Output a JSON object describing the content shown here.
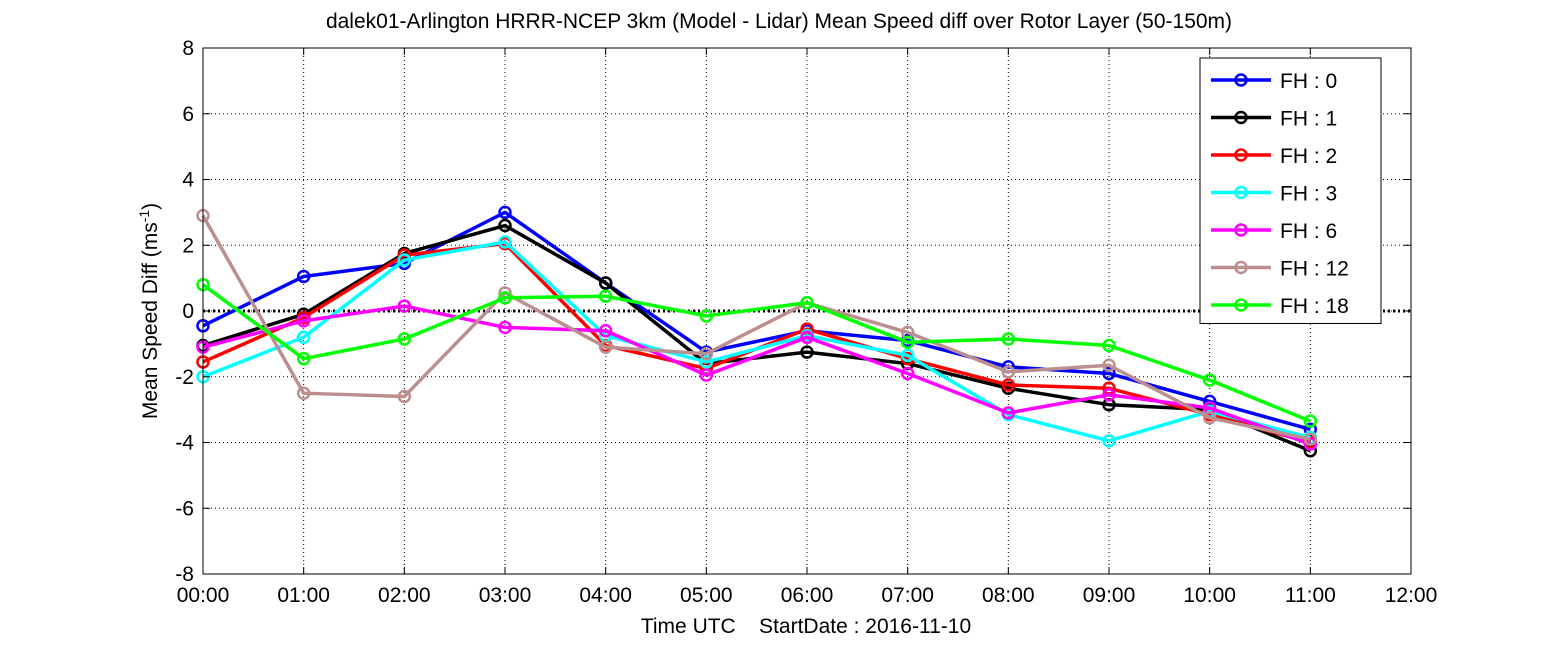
{
  "chart_data": {
    "type": "line",
    "title": "dalek01-Arlington HRRR-NCEP 3km (Model - Lidar) Mean Speed diff over Rotor Layer (50-150m)",
    "xlabel": "Time UTC    StartDate : 2016-11-10",
    "ylabel_main": "Mean Speed Diff (ms",
    "ylabel_sup": "-1",
    "ylabel_close": ")",
    "xlim": [
      0,
      12
    ],
    "ylim": [
      -8,
      8
    ],
    "x_tick_labels": [
      "00:00",
      "01:00",
      "02:00",
      "03:00",
      "04:00",
      "05:00",
      "06:00",
      "07:00",
      "08:00",
      "09:00",
      "10:00",
      "11:00",
      "12:00"
    ],
    "y_tick_labels": [
      "-8",
      "-6",
      "-4",
      "-2",
      "0",
      "2",
      "4",
      "6",
      "8"
    ],
    "grid": true,
    "legend_position": "top-right",
    "x": [
      0,
      1,
      2,
      3,
      4,
      5,
      6,
      7,
      8,
      9,
      10,
      11
    ],
    "series": [
      {
        "name": "FH : 0",
        "color": "#0000ff",
        "values": [
          -0.45,
          1.05,
          1.45,
          3.0,
          0.85,
          -1.25,
          -0.6,
          -0.9,
          -1.7,
          -1.9,
          -2.75,
          -3.6
        ]
      },
      {
        "name": "FH : 1",
        "color": "#000000",
        "values": [
          -1.05,
          -0.1,
          1.75,
          2.6,
          0.85,
          -1.6,
          -1.25,
          -1.6,
          -2.35,
          -2.85,
          -3.0,
          -4.25
        ]
      },
      {
        "name": "FH : 2",
        "color": "#ff0000",
        "values": [
          -1.55,
          -0.2,
          1.7,
          2.05,
          -1.05,
          -1.75,
          -0.55,
          -1.45,
          -2.25,
          -2.35,
          -3.15,
          -4.0
        ]
      },
      {
        "name": "FH : 3",
        "color": "#00ffff",
        "values": [
          -2.0,
          -0.8,
          1.55,
          2.1,
          -0.75,
          -1.55,
          -0.75,
          -1.35,
          -3.15,
          -3.95,
          -3.05,
          -3.85
        ]
      },
      {
        "name": "FH : 6",
        "color": "#ff00ff",
        "values": [
          -1.1,
          -0.3,
          0.15,
          -0.5,
          -0.6,
          -1.95,
          -0.8,
          -1.9,
          -3.1,
          -2.55,
          -2.95,
          -4.05
        ]
      },
      {
        "name": "FH : 12",
        "color": "#bc8f8f",
        "values": [
          2.9,
          -2.5,
          -2.6,
          0.55,
          -1.1,
          -1.3,
          0.25,
          -0.65,
          -1.85,
          -1.65,
          -3.25,
          -3.9
        ]
      },
      {
        "name": "FH : 18",
        "color": "#00ff00",
        "values": [
          0.8,
          -1.45,
          -0.85,
          0.4,
          0.45,
          -0.15,
          0.25,
          -0.95,
          -0.85,
          -1.05,
          -2.1,
          -3.35
        ]
      }
    ]
  }
}
